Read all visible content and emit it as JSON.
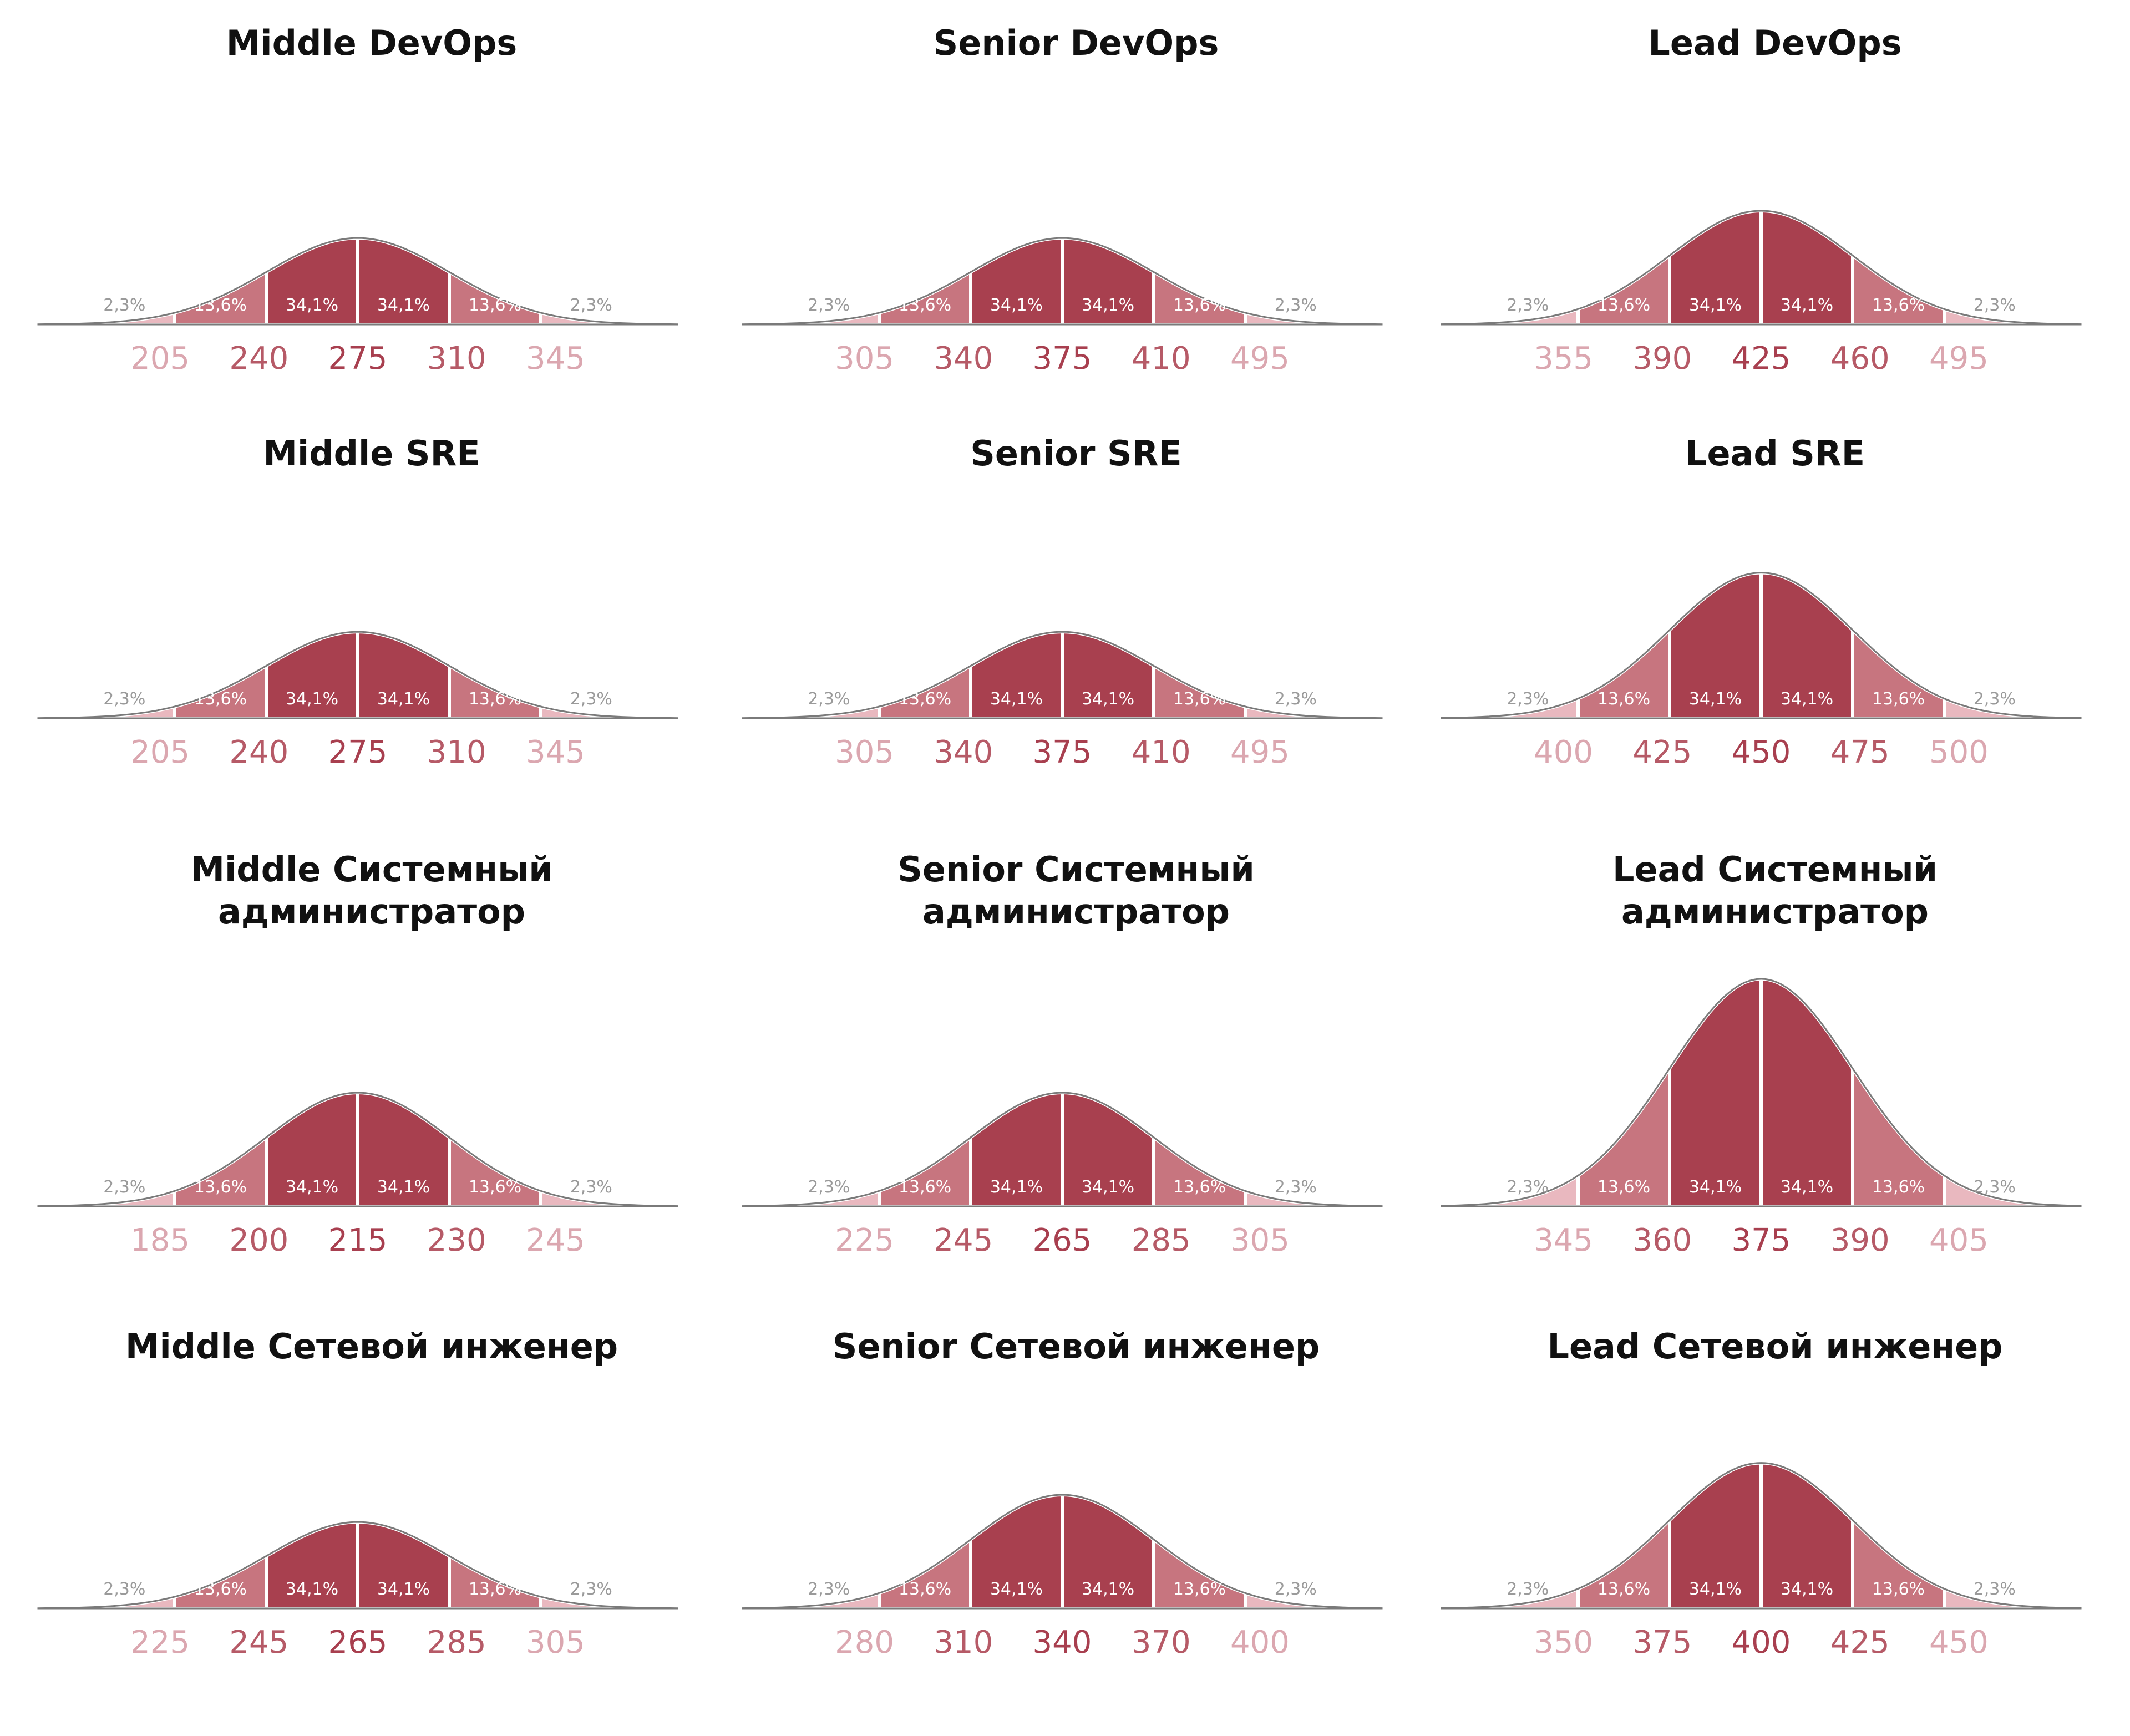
{
  "colors": {
    "center": "#a8404f",
    "side": "#c7757f",
    "tail": "#e9b8bf",
    "outline": "#7a7a7a",
    "tick_center": "#a83f4f",
    "tick_inner": "#b65a67",
    "tick_outer": "#dba7b0"
  },
  "segment_labels": [
    "2,3%",
    "13,6%",
    "34,1%",
    "34,1%",
    "13,6%",
    "2,3%"
  ],
  "chart_data": [
    {
      "type": "area",
      "title": "Middle DevOps",
      "x": [
        205,
        240,
        275,
        310,
        345
      ],
      "peak": 0.38
    },
    {
      "type": "area",
      "title": "Senior DevOps",
      "x": [
        305,
        340,
        375,
        410,
        495
      ],
      "peak": 0.38
    },
    {
      "type": "area",
      "title": "Lead DevOps",
      "x": [
        355,
        390,
        425,
        460,
        495
      ],
      "peak": 0.5
    },
    {
      "type": "area",
      "title": "Middle SRE",
      "x": [
        205,
        240,
        275,
        310,
        345
      ],
      "peak": 0.38
    },
    {
      "type": "area",
      "title": "Senior SRE",
      "x": [
        305,
        340,
        375,
        410,
        495
      ],
      "peak": 0.38
    },
    {
      "type": "area",
      "title": "Lead SRE",
      "x": [
        400,
        425,
        450,
        475,
        500
      ],
      "peak": 0.64
    },
    {
      "type": "area",
      "title": "Middle Системный\nадминистратор",
      "x": [
        185,
        200,
        215,
        230,
        245
      ],
      "peak": 0.5
    },
    {
      "type": "area",
      "title": "Senior Системный\nадминистратор",
      "x": [
        225,
        245,
        265,
        285,
        305
      ],
      "peak": 0.5
    },
    {
      "type": "area",
      "title": "Lead Системный\nадминистратор",
      "x": [
        345,
        360,
        375,
        390,
        405
      ],
      "peak": 1.0
    },
    {
      "type": "area",
      "title": "Middle Сетевой инженер",
      "x": [
        225,
        245,
        265,
        285,
        305
      ],
      "peak": 0.38
    },
    {
      "type": "area",
      "title": "Senior Сетевой инженер",
      "x": [
        280,
        310,
        340,
        370,
        400
      ],
      "peak": 0.5
    },
    {
      "type": "area",
      "title": "Lead Сетевой инженер",
      "x": [
        350,
        375,
        400,
        425,
        450
      ],
      "peak": 0.64
    }
  ]
}
